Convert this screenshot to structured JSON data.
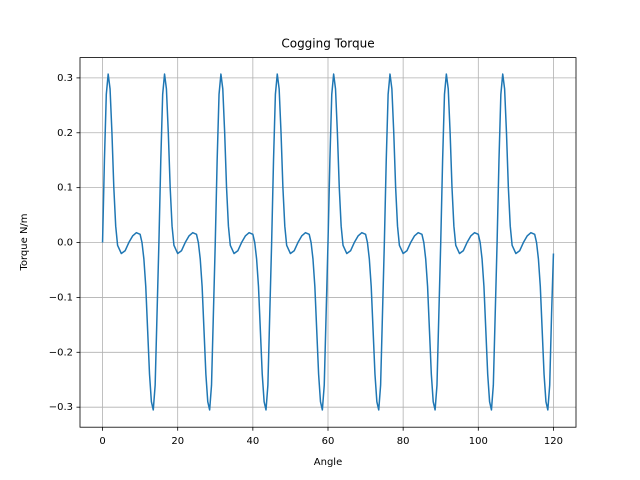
{
  "chart_data": {
    "type": "line",
    "title": "Cogging Torque",
    "x_label": "Angle",
    "y_label": "Torque N/m",
    "color": "#1f77b4",
    "grid": true,
    "xlim": [
      -6,
      126
    ],
    "ylim": [
      -0.3365,
      0.337
    ],
    "xticks": [
      0,
      20,
      40,
      60,
      80,
      100,
      120
    ],
    "yticks": [
      {
        "value": -0.3,
        "label": "−0.3"
      },
      {
        "value": -0.2,
        "label": "−0.2"
      },
      {
        "value": -0.1,
        "label": "−0.1"
      },
      {
        "value": 0,
        "label": "0.0"
      },
      0.1,
      0.2,
      0.3
    ],
    "x": [
      0,
      0.5,
      1,
      1.5,
      2,
      2.5,
      3,
      3.5,
      4,
      5,
      6,
      7,
      8,
      9,
      10,
      10.5,
      11,
      11.5,
      12,
      12.5,
      13,
      13.5,
      14,
      14.5,
      15,
      15.5,
      16,
      16.5,
      17,
      17.5,
      18,
      18.5,
      19,
      20,
      21,
      22,
      23,
      24,
      25,
      25.5,
      26,
      26.5,
      27,
      27.5,
      28,
      28.5,
      29,
      29.5,
      30,
      30.5,
      31,
      31.5,
      32,
      32.5,
      33,
      33.5,
      34,
      35,
      36,
      37,
      38,
      39,
      40,
      40.5,
      41,
      41.5,
      42,
      42.5,
      43,
      43.5,
      44,
      44.5,
      45,
      45.5,
      46,
      46.5,
      47,
      47.5,
      48,
      48.5,
      49,
      50,
      51,
      52,
      53,
      54,
      55,
      55.5,
      56,
      56.5,
      57,
      57.5,
      58,
      58.5,
      59,
      59.5,
      60,
      60.5,
      61,
      61.5,
      62,
      62.5,
      63,
      63.5,
      64,
      65,
      66,
      67,
      68,
      69,
      70,
      70.5,
      71,
      71.5,
      72,
      72.5,
      73,
      73.5,
      74,
      74.5,
      75,
      75.5,
      76,
      76.5,
      77,
      77.5,
      78,
      78.5,
      79,
      80,
      81,
      82,
      83,
      84,
      85,
      85.5,
      86,
      86.5,
      87,
      87.5,
      88,
      88.5,
      89,
      89.5,
      90,
      90.5,
      91,
      91.5,
      92,
      92.5,
      93,
      93.5,
      94,
      95,
      96,
      97,
      98,
      99,
      100,
      100.5,
      101,
      101.5,
      102,
      102.5,
      103,
      103.5,
      104,
      104.5,
      105,
      105.5,
      106,
      106.5,
      107,
      107.5,
      108,
      108.5,
      109,
      110,
      111,
      112,
      113,
      114,
      115,
      115.5,
      116,
      116.5,
      117,
      117.5,
      118,
      118.5,
      119,
      119.5,
      120
    ],
    "values": [
      0,
      0.15,
      0.27,
      0.307,
      0.28,
      0.2,
      0.1,
      0.03,
      -0.005,
      -0.02,
      -0.015,
      0,
      0.012,
      0.018,
      0.015,
      0,
      -0.03,
      -0.08,
      -0.16,
      -0.24,
      -0.29,
      -0.305,
      -0.26,
      -0.13,
      0,
      0.15,
      0.27,
      0.307,
      0.28,
      0.2,
      0.1,
      0.03,
      -0.005,
      -0.02,
      -0.015,
      0,
      0.012,
      0.018,
      0.015,
      0,
      -0.03,
      -0.08,
      -0.16,
      -0.24,
      -0.29,
      -0.305,
      -0.26,
      -0.13,
      0,
      0.15,
      0.27,
      0.307,
      0.28,
      0.2,
      0.1,
      0.03,
      -0.005,
      -0.02,
      -0.015,
      0,
      0.012,
      0.018,
      0.015,
      0,
      -0.03,
      -0.08,
      -0.16,
      -0.24,
      -0.29,
      -0.305,
      -0.26,
      -0.13,
      0,
      0.15,
      0.27,
      0.307,
      0.28,
      0.2,
      0.1,
      0.03,
      -0.005,
      -0.02,
      -0.015,
      0,
      0.012,
      0.018,
      0.015,
      0,
      -0.03,
      -0.08,
      -0.16,
      -0.24,
      -0.29,
      -0.305,
      -0.26,
      -0.13,
      0,
      0.15,
      0.27,
      0.307,
      0.28,
      0.2,
      0.1,
      0.03,
      -0.005,
      -0.02,
      -0.015,
      0,
      0.012,
      0.018,
      0.015,
      0,
      -0.03,
      -0.08,
      -0.16,
      -0.24,
      -0.29,
      -0.305,
      -0.26,
      -0.13,
      0,
      0.15,
      0.27,
      0.307,
      0.28,
      0.2,
      0.1,
      0.03,
      -0.005,
      -0.02,
      -0.015,
      0,
      0.012,
      0.018,
      0.015,
      0,
      -0.03,
      -0.08,
      -0.16,
      -0.24,
      -0.29,
      -0.305,
      -0.26,
      -0.13,
      0,
      0.15,
      0.27,
      0.307,
      0.28,
      0.2,
      0.1,
      0.03,
      -0.005,
      -0.02,
      -0.015,
      0,
      0.012,
      0.018,
      0.015,
      0,
      -0.03,
      -0.08,
      -0.16,
      -0.24,
      -0.29,
      -0.305,
      -0.26,
      -0.13,
      0,
      0.15,
      0.27,
      0.307,
      0.28,
      0.2,
      0.1,
      0.03,
      -0.005,
      -0.02,
      -0.015,
      0,
      0.012,
      0.018,
      0.015,
      0,
      -0.03,
      -0.08,
      -0.16,
      -0.24,
      -0.29,
      -0.305,
      -0.26,
      -0.13,
      -0.02
    ]
  }
}
